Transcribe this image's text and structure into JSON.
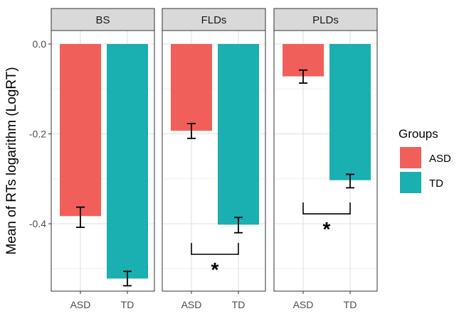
{
  "chart_data": {
    "type": "bar",
    "ylabel": "Mean of RTs logarithm (LogRT)",
    "ylim": [
      -0.55,
      0.03
    ],
    "yticks": [
      0.0,
      -0.2,
      -0.4
    ],
    "ytick_labels": [
      "0.0",
      "-0.2",
      "-0.4"
    ],
    "categories": [
      "ASD",
      "TD"
    ],
    "legend": {
      "title": "Groups",
      "position": "right",
      "items": [
        {
          "label": "ASD",
          "color": "#F15F5B"
        },
        {
          "label": "TD",
          "color": "#1AAFB1"
        }
      ]
    },
    "panels": [
      {
        "title": "BS",
        "bars": [
          {
            "group": "ASD",
            "value": -0.383,
            "err_low": -0.408,
            "err_high": -0.363
          },
          {
            "group": "TD",
            "value": -0.522,
            "err_low": -0.538,
            "err_high": -0.506
          }
        ],
        "significance": null
      },
      {
        "title": "FLDs",
        "bars": [
          {
            "group": "ASD",
            "value": -0.193,
            "err_low": -0.21,
            "err_high": -0.177
          },
          {
            "group": "TD",
            "value": -0.402,
            "err_low": -0.42,
            "err_high": -0.386
          }
        ],
        "significance": {
          "label": "*",
          "level": -0.468
        }
      },
      {
        "title": "PLDs",
        "bars": [
          {
            "group": "ASD",
            "value": -0.072,
            "err_low": -0.087,
            "err_high": -0.058
          },
          {
            "group": "TD",
            "value": -0.303,
            "err_low": -0.32,
            "err_high": -0.29
          }
        ],
        "significance": {
          "label": "*",
          "level": -0.378
        }
      }
    ]
  }
}
